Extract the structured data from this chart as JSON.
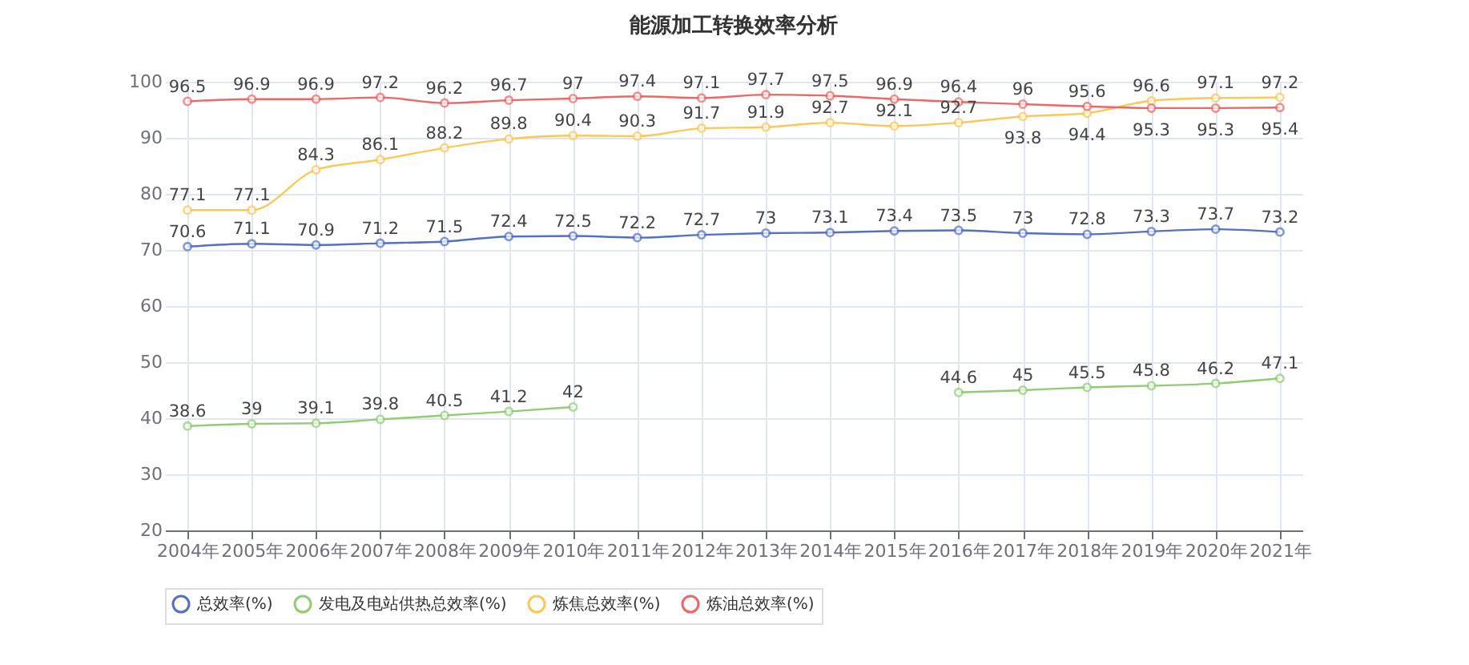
{
  "chart_data": {
    "type": "line",
    "title": "能源加工转换效率分析",
    "categories": [
      "2004年",
      "2005年",
      "2006年",
      "2007年",
      "2008年",
      "2009年",
      "2010年",
      "2011年",
      "2012年",
      "2013年",
      "2014年",
      "2015年",
      "2016年",
      "2017年",
      "2018年",
      "2019年",
      "2020年",
      "2021年"
    ],
    "series": [
      {
        "name": "总效率(%)",
        "color": "#5470c6",
        "values": [
          70.6,
          71.1,
          70.9,
          71.2,
          71.5,
          72.4,
          72.5,
          72.2,
          72.7,
          73,
          73.1,
          73.4,
          73.5,
          73,
          72.8,
          73.3,
          73.7,
          73.2
        ]
      },
      {
        "name": "发电及电站供热总效率(%)",
        "color": "#91cc75",
        "values": [
          38.6,
          39,
          39.1,
          39.8,
          40.5,
          41.2,
          42,
          null,
          null,
          null,
          null,
          null,
          44.6,
          45,
          45.5,
          45.8,
          46.2,
          47.1
        ]
      },
      {
        "name": "炼焦总效率(%)",
        "color": "#fac858",
        "values": [
          77.1,
          77.1,
          84.3,
          86.1,
          88.2,
          89.8,
          90.4,
          90.3,
          91.7,
          91.9,
          92.7,
          92.1,
          92.7,
          93.8,
          94.4,
          96.6,
          97.1,
          97.2
        ]
      },
      {
        "name": "炼油总效率(%)",
        "color": "#ee6666",
        "values": [
          96.5,
          96.9,
          96.9,
          97.2,
          96.2,
          96.7,
          97,
          97.4,
          97.1,
          97.7,
          97.5,
          96.9,
          96.4,
          96,
          95.6,
          95.3,
          95.3,
          95.4
        ]
      }
    ],
    "ylim": [
      20,
      100
    ],
    "yticks": [
      20,
      30,
      40,
      50,
      60,
      70,
      80,
      90,
      100
    ],
    "grid": true,
    "legend": "bottom",
    "marker": "circle",
    "line_style": "solid",
    "data_labels": true
  }
}
